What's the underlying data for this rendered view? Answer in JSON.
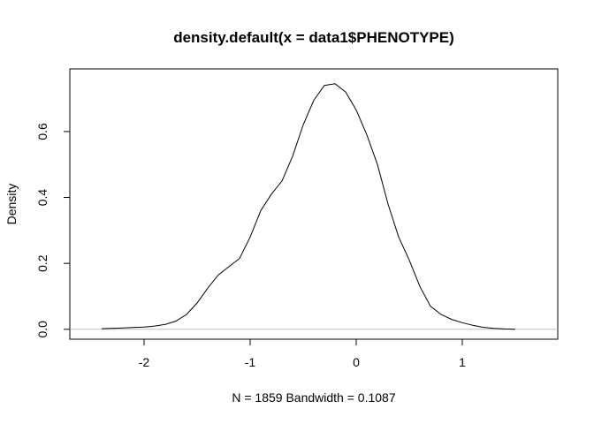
{
  "chart_data": {
    "type": "line",
    "title": "density.default(x = data1$PHENOTYPE)",
    "xlabel": "N = 1859   Bandwidth = 0.1087",
    "ylabel": "Density",
    "xlim": [
      -2.7,
      1.9
    ],
    "ylim": [
      -0.03,
      0.79
    ],
    "xticks": [
      -2,
      -1,
      0,
      1
    ],
    "xtick_labels": [
      "-2",
      "-1",
      "0",
      "1"
    ],
    "yticks": [
      0.0,
      0.2,
      0.4,
      0.6
    ],
    "ytick_labels": [
      "0.0",
      "0.2",
      "0.4",
      "0.6"
    ],
    "grid": false,
    "baseline": 0,
    "colors": {
      "line": "#000000",
      "baseline": "#bebebe",
      "frame": "#000000"
    },
    "series": [
      {
        "x": [
          -2.4,
          -2.2,
          -2.0,
          -1.9,
          -1.8,
          -1.7,
          -1.6,
          -1.5,
          -1.4,
          -1.3,
          -1.2,
          -1.1,
          -1.0,
          -0.9,
          -0.8,
          -0.7,
          -0.6,
          -0.5,
          -0.4,
          -0.3,
          -0.2,
          -0.1,
          0.0,
          0.1,
          0.2,
          0.3,
          0.4,
          0.5,
          0.6,
          0.7,
          0.8,
          0.9,
          1.0,
          1.1,
          1.2,
          1.3,
          1.4,
          1.5
        ],
        "y": [
          0.002,
          0.004,
          0.007,
          0.01,
          0.015,
          0.025,
          0.045,
          0.08,
          0.125,
          0.165,
          0.19,
          0.215,
          0.28,
          0.36,
          0.41,
          0.45,
          0.525,
          0.62,
          0.695,
          0.74,
          0.745,
          0.72,
          0.665,
          0.59,
          0.5,
          0.38,
          0.28,
          0.21,
          0.13,
          0.07,
          0.045,
          0.03,
          0.02,
          0.012,
          0.006,
          0.003,
          0.001,
          0.0
        ]
      }
    ]
  }
}
